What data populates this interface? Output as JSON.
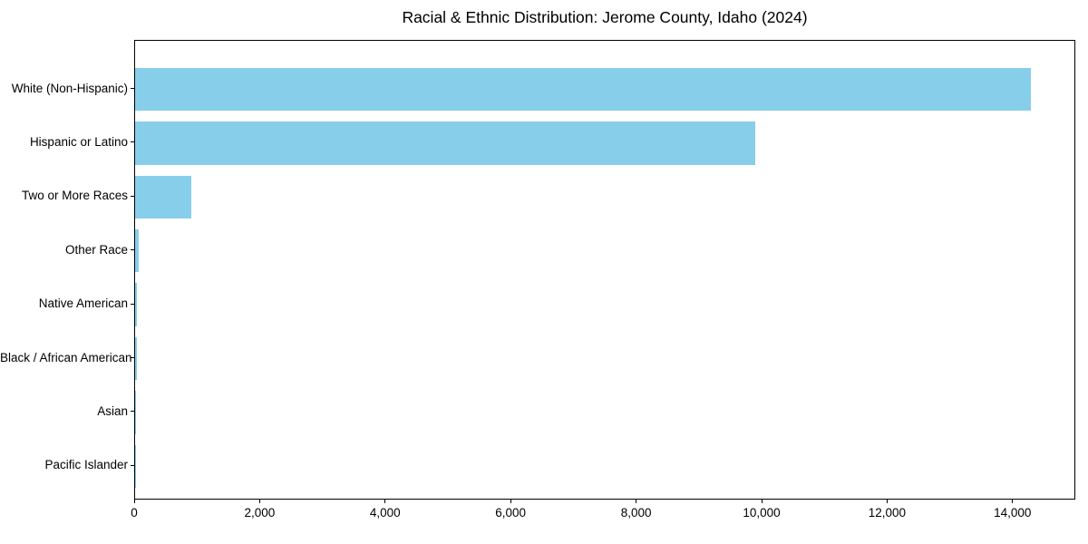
{
  "chart_data": {
    "type": "bar",
    "orientation": "horizontal",
    "title": "Racial & Ethnic Distribution: Jerome County, Idaho (2024)",
    "categories": [
      "White (Non-Hispanic)",
      "Hispanic or Latino",
      "Two or More Races",
      "Other Race",
      "Native American",
      "Black / African American",
      "Asian",
      "Pacific Islander"
    ],
    "values": [
      14280,
      9880,
      900,
      60,
      30,
      25,
      12,
      5
    ],
    "xlabel": "",
    "ylabel": "",
    "xlim": [
      0,
      15000
    ],
    "xticks": [
      0,
      2000,
      4000,
      6000,
      8000,
      10000,
      12000,
      14000
    ],
    "xtick_labels": [
      "0",
      "2,000",
      "4,000",
      "6,000",
      "8,000",
      "10,000",
      "12,000",
      "14,000"
    ],
    "bar_color": "#87CEEB",
    "axis_color": "#000000",
    "text_color": "#000000",
    "background_color": "#ffffff",
    "grid": false,
    "legend": null
  }
}
